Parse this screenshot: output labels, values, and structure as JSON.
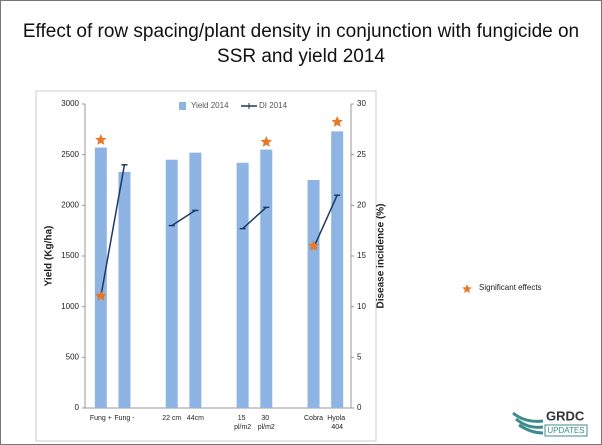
{
  "chart_data": {
    "type": "bar",
    "title": "Effect of row spacing/plant density in conjunction with fungicide on SSR and yield 2014",
    "categories": [
      "Fung +",
      "Fung -",
      null,
      "22 cm",
      "44cm",
      null,
      "15 pl/m2",
      "30 pl/m2",
      null,
      "Cobra",
      "Hyola 404"
    ],
    "series": [
      {
        "name": "Yield 2014",
        "type": "bar",
        "color": "#8db4e2",
        "values": [
          2570,
          2330,
          null,
          2450,
          2520,
          null,
          2420,
          2550,
          null,
          2250,
          2730
        ]
      },
      {
        "name": "DI 2014",
        "type": "line",
        "axis": "y2",
        "color": "#1f3864",
        "values": [
          11,
          24,
          null,
          18,
          19.5,
          null,
          17.7,
          19.8,
          null,
          15.8,
          21
        ]
      }
    ],
    "ylabel": "Yield (Kg/ha)",
    "y2label": "Disease incidence (%)",
    "ylim": [
      0,
      3000
    ],
    "yticks": [
      0,
      500,
      1000,
      1500,
      2000,
      2500,
      3000
    ],
    "y2lim": [
      0,
      30
    ],
    "y2ticks": [
      0,
      5,
      10,
      15,
      20,
      25,
      30
    ],
    "legend": "top",
    "annotations": [
      "Significant effects"
    ]
  },
  "logo": {
    "name": "GRDC",
    "tagline": "UPDATES"
  }
}
